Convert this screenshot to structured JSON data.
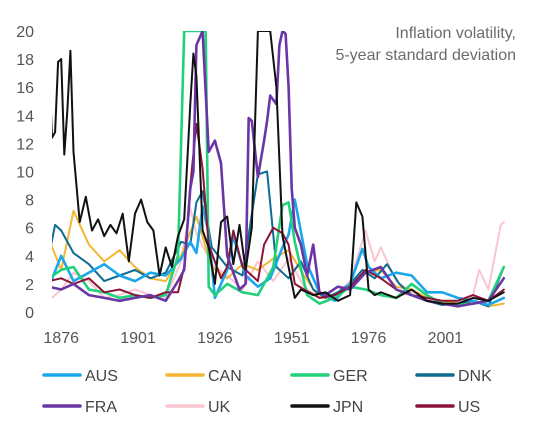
{
  "chart_data": {
    "type": "line",
    "title": "Inflation volatility,",
    "subtitle": "5-year standard deviation",
    "xlabel": "",
    "ylabel": "",
    "xlim": [
      1873,
      2023
    ],
    "ylim": [
      0,
      20
    ],
    "x_ticks": [
      "1876",
      "1901",
      "1926",
      "1951",
      "1976",
      "2001"
    ],
    "y_ticks": [
      "20",
      "18",
      "16",
      "14",
      "12",
      "10",
      "8",
      "6",
      "4",
      "2",
      "0"
    ],
    "grid": false,
    "legend_position": "bottom",
    "series": [
      {
        "name": "AUS",
        "color": "#1aa7ec",
        "x": [
          1872,
          1876,
          1880,
          1885,
          1890,
          1895,
          1900,
          1905,
          1910,
          1915,
          1918,
          1920,
          1922,
          1924,
          1926,
          1930,
          1932,
          1936,
          1940,
          1944,
          1948,
          1950,
          1952,
          1956,
          1960,
          1965,
          1970,
          1974,
          1976,
          1980,
          1985,
          1990,
          1995,
          2000,
          2005,
          2010,
          2015,
          2020
        ],
        "y": [
          1.8,
          4.0,
          2.2,
          2.8,
          3.4,
          2.6,
          2.2,
          2.8,
          2.6,
          3.8,
          5.0,
          4.2,
          7.5,
          5.6,
          1.0,
          3.0,
          5.4,
          2.6,
          1.8,
          2.4,
          4.6,
          5.5,
          8.0,
          3.4,
          1.4,
          0.8,
          2.0,
          4.5,
          3.2,
          2.4,
          2.8,
          2.6,
          1.4,
          1.4,
          1.0,
          0.8,
          0.5,
          1.0
        ]
      },
      {
        "name": "CAN",
        "color": "#f4b731",
        "x": [
          1872,
          1876,
          1880,
          1885,
          1890,
          1895,
          1900,
          1905,
          1910,
          1915,
          1920,
          1925,
          1930,
          1935,
          1940,
          1945,
          1950,
          1955,
          1960,
          1965,
          1970,
          1975,
          1980,
          1985,
          1990,
          1995,
          2000,
          2005,
          2010,
          2015,
          2020
        ],
        "y": [
          5.2,
          3.0,
          7.2,
          4.8,
          3.6,
          4.4,
          3.2,
          2.4,
          2.2,
          4.0,
          6.8,
          3.2,
          2.4,
          3.4,
          3.0,
          3.8,
          4.4,
          2.6,
          1.0,
          1.0,
          1.8,
          2.8,
          3.0,
          1.8,
          1.6,
          1.0,
          0.8,
          0.6,
          0.8,
          0.4,
          0.6
        ]
      },
      {
        "name": "GER",
        "color": "#22d17a",
        "x": [
          1872,
          1876,
          1880,
          1885,
          1890,
          1895,
          1900,
          1905,
          1910,
          1914,
          1916,
          1918,
          1920,
          1922,
          1923,
          1924,
          1926,
          1930,
          1935,
          1940,
          1945,
          1948,
          1950,
          1952,
          1956,
          1960,
          1965,
          1970,
          1975,
          1980,
          1985,
          1990,
          1995,
          2000,
          2005,
          2010,
          2015,
          2020
        ],
        "y": [
          2.4,
          3.0,
          3.2,
          1.6,
          1.4,
          1.0,
          1.2,
          1.0,
          1.2,
          4.0,
          20.0,
          20.0,
          20.0,
          20.0,
          20.0,
          1.8,
          1.2,
          2.0,
          1.4,
          1.2,
          3.2,
          7.6,
          7.8,
          5.0,
          1.2,
          0.6,
          1.0,
          1.8,
          1.6,
          1.2,
          1.0,
          2.0,
          1.2,
          0.6,
          0.5,
          0.6,
          0.8,
          3.2
        ]
      },
      {
        "name": "DNK",
        "color": "#0c6c91",
        "x": [
          1872,
          1874,
          1876,
          1880,
          1885,
          1890,
          1895,
          1900,
          1905,
          1910,
          1915,
          1918,
          1920,
          1922,
          1925,
          1930,
          1935,
          1940,
          1943,
          1946,
          1950,
          1954,
          1958,
          1962,
          1966,
          1970,
          1974,
          1978,
          1982,
          1986,
          1990,
          1995,
          2000,
          2005,
          2010,
          2015,
          2020
        ],
        "y": [
          4.0,
          6.2,
          5.8,
          4.2,
          3.4,
          2.2,
          2.6,
          3.0,
          2.4,
          2.8,
          5.0,
          4.8,
          7.8,
          8.6,
          4.6,
          3.2,
          2.6,
          9.8,
          10.0,
          3.2,
          2.4,
          3.6,
          1.6,
          1.0,
          1.4,
          2.0,
          3.0,
          2.4,
          3.4,
          2.0,
          1.2,
          0.8,
          0.5,
          0.6,
          0.8,
          0.4,
          3.2
        ]
      },
      {
        "name": "FRA",
        "color": "#6a35a5",
        "x": [
          1872,
          1876,
          1880,
          1885,
          1890,
          1895,
          1900,
          1905,
          1910,
          1914,
          1916,
          1918,
          1919,
          1920,
          1922,
          1924,
          1926,
          1928,
          1930,
          1934,
          1936,
          1937,
          1938,
          1940,
          1942,
          1943,
          1944,
          1946,
          1947,
          1948,
          1949,
          1950,
          1951,
          1952,
          1954,
          1956,
          1958,
          1960,
          1962,
          1966,
          1970,
          1975,
          1980,
          1985,
          1990,
          1995,
          2000,
          2005,
          2010,
          2015,
          2020
        ],
        "y": [
          1.8,
          1.6,
          2.0,
          1.2,
          1.0,
          0.8,
          1.0,
          1.2,
          0.8,
          2.2,
          3.0,
          8.8,
          10.0,
          19.0,
          20.0,
          11.4,
          12.2,
          10.6,
          4.0,
          1.6,
          2.0,
          13.8,
          13.6,
          9.6,
          12.2,
          13.6,
          15.4,
          14.8,
          19.0,
          20.0,
          19.8,
          16.0,
          8.8,
          6.0,
          4.8,
          2.6,
          4.8,
          1.4,
          1.2,
          1.8,
          1.6,
          2.8,
          3.2,
          1.6,
          1.2,
          0.8,
          0.6,
          0.4,
          0.6,
          0.8,
          2.4
        ]
      },
      {
        "name": "UK",
        "color": "#f9c6d1",
        "x": [
          1872,
          1876,
          1880,
          1885,
          1890,
          1895,
          1900,
          1905,
          1910,
          1915,
          1918,
          1920,
          1925,
          1930,
          1935,
          1940,
          1945,
          1950,
          1955,
          1960,
          1965,
          1970,
          1975,
          1978,
          1980,
          1985,
          1990,
          1995,
          2000,
          2005,
          2010,
          2012,
          2015,
          2019,
          2020
        ],
        "y": [
          0.8,
          1.6,
          2.8,
          2.2,
          1.0,
          1.2,
          1.6,
          1.2,
          1.0,
          3.6,
          7.4,
          5.6,
          3.4,
          2.6,
          1.6,
          3.6,
          2.2,
          3.8,
          1.8,
          1.0,
          1.2,
          2.2,
          5.8,
          3.6,
          4.6,
          2.2,
          1.4,
          1.2,
          0.6,
          0.8,
          1.2,
          3.0,
          1.6,
          6.2,
          6.4
        ]
      },
      {
        "name": "JPN",
        "color": "#111111",
        "x": [
          1872,
          1873,
          1874,
          1875,
          1876,
          1877,
          1878,
          1879,
          1880,
          1882,
          1884,
          1886,
          1888,
          1890,
          1892,
          1894,
          1896,
          1898,
          1900,
          1902,
          1904,
          1906,
          1908,
          1910,
          1912,
          1914,
          1916,
          1918,
          1919,
          1920,
          1922,
          1924,
          1926,
          1928,
          1930,
          1932,
          1934,
          1936,
          1938,
          1940,
          1942,
          1944,
          1946,
          1948,
          1950,
          1952,
          1954,
          1958,
          1962,
          1966,
          1970,
          1972,
          1974,
          1976,
          1978,
          1980,
          1985,
          1990,
          1995,
          2000,
          2005,
          2010,
          2015,
          2020
        ],
        "y": [
          18.0,
          12.4,
          12.8,
          17.8,
          18.0,
          11.2,
          14.4,
          18.6,
          11.4,
          6.4,
          8.2,
          5.8,
          6.6,
          5.4,
          6.2,
          5.6,
          7.0,
          3.6,
          7.0,
          8.0,
          6.4,
          5.8,
          2.6,
          4.6,
          3.2,
          5.4,
          6.6,
          14.8,
          18.4,
          16.8,
          5.8,
          4.6,
          2.0,
          6.4,
          6.8,
          3.4,
          6.2,
          3.0,
          6.0,
          20.0,
          20.0,
          20.0,
          16.0,
          5.4,
          3.2,
          1.0,
          1.6,
          1.2,
          1.4,
          0.8,
          1.2,
          7.8,
          6.8,
          1.6,
          1.2,
          1.4,
          1.0,
          1.6,
          0.8,
          0.6,
          0.6,
          1.0,
          0.8,
          1.4
        ]
      },
      {
        "name": "US",
        "color": "#8a1538",
        "x": [
          1872,
          1876,
          1880,
          1885,
          1890,
          1895,
          1900,
          1905,
          1910,
          1914,
          1916,
          1918,
          1920,
          1922,
          1924,
          1928,
          1930,
          1932,
          1935,
          1940,
          1942,
          1945,
          1948,
          1950,
          1952,
          1955,
          1960,
          1965,
          1970,
          1975,
          1980,
          1985,
          1990,
          1995,
          2000,
          2005,
          2010,
          2015,
          2020
        ],
        "y": [
          2.2,
          2.4,
          2.0,
          2.4,
          1.4,
          1.6,
          1.2,
          1.0,
          1.4,
          1.4,
          3.2,
          9.0,
          13.4,
          10.2,
          4.8,
          2.4,
          3.2,
          5.8,
          3.2,
          2.2,
          4.8,
          6.0,
          5.6,
          4.8,
          2.0,
          1.6,
          1.0,
          1.2,
          1.8,
          3.0,
          2.4,
          1.6,
          1.2,
          1.0,
          0.8,
          0.8,
          1.2,
          0.8,
          1.6
        ]
      }
    ]
  }
}
